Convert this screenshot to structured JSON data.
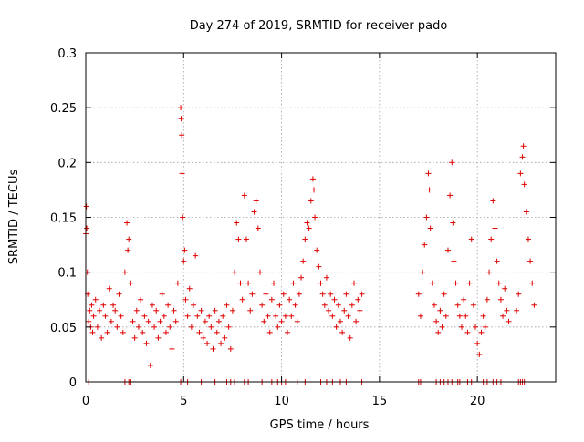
{
  "chart_data": {
    "type": "scatter",
    "title": "Day 274 of 2019, SRMTID for receiver pado",
    "xlabel": "GPS time / hours",
    "ylabel": "SRMTID / TECUs",
    "xlim": [
      0,
      24
    ],
    "ylim": [
      0,
      0.3
    ],
    "xticks": [
      0,
      5,
      10,
      15,
      20
    ],
    "xtick_labels": [
      "0",
      "5",
      "10",
      "15",
      "20"
    ],
    "yticks": [
      0,
      0.05,
      0.1,
      0.15,
      0.2,
      0.25,
      0.3
    ],
    "ytick_labels": [
      "0",
      "0.05",
      "0.1",
      "0.15",
      "0.2",
      "0.25",
      "0.3"
    ],
    "grid": true,
    "marker": "+",
    "color": "#e00000",
    "series": [
      {
        "name": "SRMTID",
        "points": [
          [
            0.0,
            0.135
          ],
          [
            0.03,
            0.16
          ],
          [
            0.05,
            0.14
          ],
          [
            0.08,
            0.1
          ],
          [
            0.1,
            0.08
          ],
          [
            0.15,
            0.055
          ],
          [
            0.2,
            0.065
          ],
          [
            0.25,
            0.05
          ],
          [
            0.3,
            0.07
          ],
          [
            0.35,
            0.045
          ],
          [
            0.4,
            0.06
          ],
          [
            0.5,
            0.075
          ],
          [
            0.6,
            0.05
          ],
          [
            0.7,
            0.065
          ],
          [
            0.8,
            0.04
          ],
          [
            0.9,
            0.07
          ],
          [
            1.0,
            0.06
          ],
          [
            1.1,
            0.045
          ],
          [
            1.2,
            0.085
          ],
          [
            1.3,
            0.055
          ],
          [
            1.4,
            0.07
          ],
          [
            1.5,
            0.065
          ],
          [
            1.6,
            0.05
          ],
          [
            1.7,
            0.08
          ],
          [
            1.8,
            0.06
          ],
          [
            1.9,
            0.045
          ],
          [
            2.0,
            0.1
          ],
          [
            2.1,
            0.145
          ],
          [
            2.15,
            0.12
          ],
          [
            2.2,
            0.13
          ],
          [
            2.3,
            0.09
          ],
          [
            2.4,
            0.055
          ],
          [
            2.5,
            0.04
          ],
          [
            2.6,
            0.065
          ],
          [
            2.7,
            0.05
          ],
          [
            2.8,
            0.075
          ],
          [
            2.9,
            0.045
          ],
          [
            3.0,
            0.06
          ],
          [
            3.1,
            0.035
          ],
          [
            3.2,
            0.055
          ],
          [
            3.3,
            0.015
          ],
          [
            3.4,
            0.07
          ],
          [
            3.5,
            0.05
          ],
          [
            3.6,
            0.065
          ],
          [
            3.7,
            0.04
          ],
          [
            3.8,
            0.055
          ],
          [
            3.9,
            0.08
          ],
          [
            4.0,
            0.06
          ],
          [
            4.1,
            0.045
          ],
          [
            4.2,
            0.07
          ],
          [
            4.3,
            0.05
          ],
          [
            4.4,
            0.03
          ],
          [
            4.5,
            0.065
          ],
          [
            4.6,
            0.055
          ],
          [
            4.7,
            0.09
          ],
          [
            4.85,
            0.25
          ],
          [
            4.87,
            0.24
          ],
          [
            4.9,
            0.225
          ],
          [
            4.92,
            0.19
          ],
          [
            4.95,
            0.15
          ],
          [
            5.0,
            0.11
          ],
          [
            5.05,
            0.12
          ],
          [
            5.1,
            0.075
          ],
          [
            5.2,
            0.06
          ],
          [
            5.3,
            0.085
          ],
          [
            5.4,
            0.05
          ],
          [
            5.5,
            0.07
          ],
          [
            5.6,
            0.115
          ],
          [
            5.7,
            0.06
          ],
          [
            5.8,
            0.045
          ],
          [
            5.9,
            0.065
          ],
          [
            6.0,
            0.04
          ],
          [
            6.1,
            0.055
          ],
          [
            6.2,
            0.035
          ],
          [
            6.3,
            0.06
          ],
          [
            6.4,
            0.05
          ],
          [
            6.5,
            0.03
          ],
          [
            6.6,
            0.065
          ],
          [
            6.7,
            0.045
          ],
          [
            6.8,
            0.055
          ],
          [
            6.9,
            0.035
          ],
          [
            7.0,
            0.06
          ],
          [
            7.1,
            0.04
          ],
          [
            7.2,
            0.07
          ],
          [
            7.3,
            0.05
          ],
          [
            7.4,
            0.03
          ],
          [
            7.5,
            0.065
          ],
          [
            7.6,
            0.1
          ],
          [
            7.7,
            0.145
          ],
          [
            7.8,
            0.13
          ],
          [
            7.9,
            0.09
          ],
          [
            8.0,
            0.075
          ],
          [
            8.1,
            0.17
          ],
          [
            8.2,
            0.13
          ],
          [
            8.3,
            0.09
          ],
          [
            8.4,
            0.065
          ],
          [
            8.5,
            0.08
          ],
          [
            8.6,
            0.155
          ],
          [
            8.7,
            0.165
          ],
          [
            8.8,
            0.14
          ],
          [
            8.9,
            0.1
          ],
          [
            9.0,
            0.07
          ],
          [
            9.1,
            0.055
          ],
          [
            9.2,
            0.08
          ],
          [
            9.3,
            0.06
          ],
          [
            9.4,
            0.045
          ],
          [
            9.5,
            0.075
          ],
          [
            9.6,
            0.09
          ],
          [
            9.7,
            0.06
          ],
          [
            9.8,
            0.05
          ],
          [
            9.9,
            0.07
          ],
          [
            10.0,
            0.055
          ],
          [
            10.1,
            0.08
          ],
          [
            10.2,
            0.06
          ],
          [
            10.3,
            0.045
          ],
          [
            10.4,
            0.075
          ],
          [
            10.5,
            0.06
          ],
          [
            10.6,
            0.09
          ],
          [
            10.7,
            0.07
          ],
          [
            10.8,
            0.055
          ],
          [
            10.9,
            0.08
          ],
          [
            11.0,
            0.095
          ],
          [
            11.1,
            0.11
          ],
          [
            11.2,
            0.13
          ],
          [
            11.3,
            0.145
          ],
          [
            11.4,
            0.14
          ],
          [
            11.5,
            0.165
          ],
          [
            11.6,
            0.185
          ],
          [
            11.65,
            0.175
          ],
          [
            11.7,
            0.15
          ],
          [
            11.8,
            0.12
          ],
          [
            11.9,
            0.105
          ],
          [
            12.0,
            0.09
          ],
          [
            12.1,
            0.08
          ],
          [
            12.2,
            0.07
          ],
          [
            12.3,
            0.095
          ],
          [
            12.4,
            0.065
          ],
          [
            12.5,
            0.08
          ],
          [
            12.6,
            0.06
          ],
          [
            12.7,
            0.075
          ],
          [
            12.8,
            0.05
          ],
          [
            12.9,
            0.07
          ],
          [
            13.0,
            0.055
          ],
          [
            13.1,
            0.045
          ],
          [
            13.2,
            0.065
          ],
          [
            13.3,
            0.08
          ],
          [
            13.4,
            0.06
          ],
          [
            13.5,
            0.04
          ],
          [
            13.6,
            0.07
          ],
          [
            13.7,
            0.09
          ],
          [
            13.8,
            0.055
          ],
          [
            13.9,
            0.075
          ],
          [
            14.0,
            0.065
          ],
          [
            14.1,
            0.08
          ],
          [
            17.0,
            0.08
          ],
          [
            17.1,
            0.06
          ],
          [
            17.2,
            0.1
          ],
          [
            17.3,
            0.125
          ],
          [
            17.4,
            0.15
          ],
          [
            17.5,
            0.19
          ],
          [
            17.55,
            0.175
          ],
          [
            17.6,
            0.14
          ],
          [
            17.7,
            0.09
          ],
          [
            17.8,
            0.07
          ],
          [
            17.9,
            0.055
          ],
          [
            18.0,
            0.045
          ],
          [
            18.1,
            0.065
          ],
          [
            18.2,
            0.05
          ],
          [
            18.3,
            0.08
          ],
          [
            18.4,
            0.06
          ],
          [
            18.5,
            0.12
          ],
          [
            18.6,
            0.17
          ],
          [
            18.7,
            0.2
          ],
          [
            18.75,
            0.145
          ],
          [
            18.8,
            0.11
          ],
          [
            18.9,
            0.09
          ],
          [
            19.0,
            0.07
          ],
          [
            19.1,
            0.06
          ],
          [
            19.2,
            0.05
          ],
          [
            19.3,
            0.075
          ],
          [
            19.4,
            0.06
          ],
          [
            19.5,
            0.045
          ],
          [
            19.6,
            0.09
          ],
          [
            19.7,
            0.13
          ],
          [
            19.8,
            0.07
          ],
          [
            19.9,
            0.05
          ],
          [
            20.0,
            0.035
          ],
          [
            20.1,
            0.025
          ],
          [
            20.2,
            0.045
          ],
          [
            20.3,
            0.06
          ],
          [
            20.4,
            0.05
          ],
          [
            20.5,
            0.075
          ],
          [
            20.6,
            0.1
          ],
          [
            20.7,
            0.13
          ],
          [
            20.8,
            0.165
          ],
          [
            20.9,
            0.14
          ],
          [
            21.0,
            0.11
          ],
          [
            21.1,
            0.09
          ],
          [
            21.2,
            0.075
          ],
          [
            21.3,
            0.06
          ],
          [
            21.4,
            0.085
          ],
          [
            21.5,
            0.065
          ],
          [
            21.6,
            0.055
          ],
          [
            22.0,
            0.065
          ],
          [
            22.1,
            0.08
          ],
          [
            22.2,
            0.19
          ],
          [
            22.3,
            0.205
          ],
          [
            22.35,
            0.215
          ],
          [
            22.4,
            0.18
          ],
          [
            22.5,
            0.155
          ],
          [
            22.6,
            0.13
          ],
          [
            22.7,
            0.11
          ],
          [
            22.8,
            0.09
          ],
          [
            22.9,
            0.07
          ]
        ],
        "zero_values_x": [
          0.15,
          2.0,
          2.2,
          2.3,
          4.85,
          5.2,
          5.9,
          6.6,
          7.2,
          7.4,
          7.6,
          8.1,
          8.3,
          9.0,
          9.5,
          9.8,
          10.0,
          10.2,
          10.8,
          11.2,
          12.0,
          12.3,
          12.6,
          13.0,
          13.3,
          14.1,
          17.0,
          17.1,
          17.9,
          18.1,
          18.3,
          18.5,
          18.7,
          19.0,
          19.1,
          19.5,
          19.7,
          20.3,
          20.5,
          20.8,
          21.0,
          21.2,
          22.1,
          22.2,
          22.3,
          22.4
        ]
      }
    ]
  }
}
